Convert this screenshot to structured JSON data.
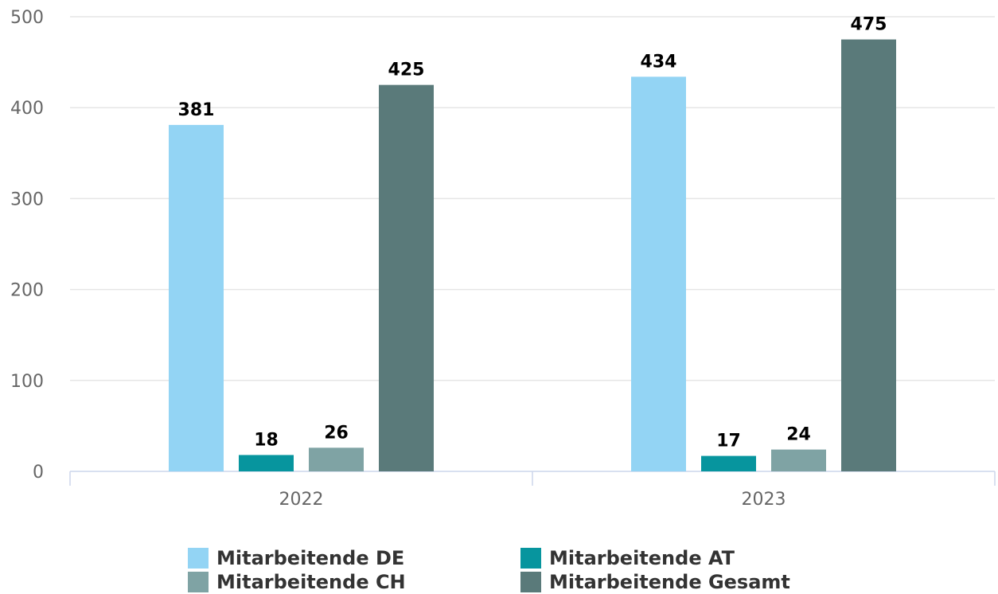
{
  "chart_data": {
    "type": "bar",
    "categories": [
      "2022",
      "2023"
    ],
    "series": [
      {
        "name": "Mitarbeitende DE",
        "values": [
          381,
          434
        ],
        "color": "#93d4f4"
      },
      {
        "name": "Mitarbeitende AT",
        "values": [
          18,
          17
        ],
        "color": "#07959e"
      },
      {
        "name": "Mitarbeitende CH",
        "values": [
          26,
          24
        ],
        "color": "#7fa3a4"
      },
      {
        "name": "Mitarbeitende Gesamt",
        "values": [
          425,
          475
        ],
        "color": "#5a7a7a"
      }
    ],
    "ylim": [
      0,
      500
    ],
    "yticks": [
      0,
      100,
      200,
      300,
      400,
      500
    ],
    "grid": true,
    "legend_position": "bottom",
    "data_labels": true
  }
}
